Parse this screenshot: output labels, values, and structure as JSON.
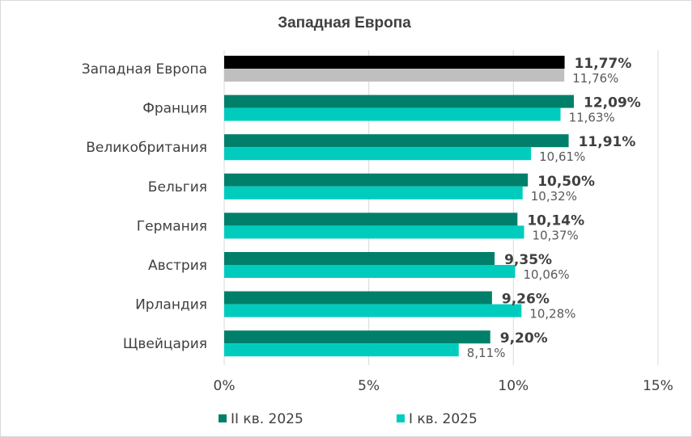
{
  "chart_data": {
    "type": "bar",
    "orientation": "horizontal",
    "title": "Западная Европа",
    "categories": [
      "Западная Европа",
      "Франция",
      "Великобритания",
      "Бельгия",
      "Германия",
      "Австрия",
      "Ирландия",
      "Щвейцария"
    ],
    "series": [
      {
        "name": "II кв. 2025",
        "values": [
          11.77,
          12.09,
          11.91,
          10.5,
          10.14,
          9.35,
          9.26,
          9.2
        ],
        "labels": [
          "11,77%",
          "12,09%",
          "11,91%",
          "10,50%",
          "10,14%",
          "9,35%",
          "9,26%",
          "9,20%"
        ],
        "color": "#00806a",
        "first_bar_color": "#000000"
      },
      {
        "name": "I кв. 2025",
        "values": [
          11.76,
          11.63,
          10.61,
          10.32,
          10.37,
          10.06,
          10.28,
          8.11
        ],
        "labels": [
          "11,76%",
          "11,63%",
          "10,61%",
          "10,32%",
          "10,37%",
          "10,06%",
          "10,28%",
          "8,11%"
        ],
        "color": "#00ccbe",
        "first_bar_color": "#bfbfbf"
      }
    ],
    "xlim": [
      0,
      15
    ],
    "xticks": [
      0,
      5,
      10,
      15
    ],
    "xtick_labels": [
      "0%",
      "5%",
      "10%",
      "15%"
    ],
    "grid": "vertical",
    "legend": "bottom"
  }
}
